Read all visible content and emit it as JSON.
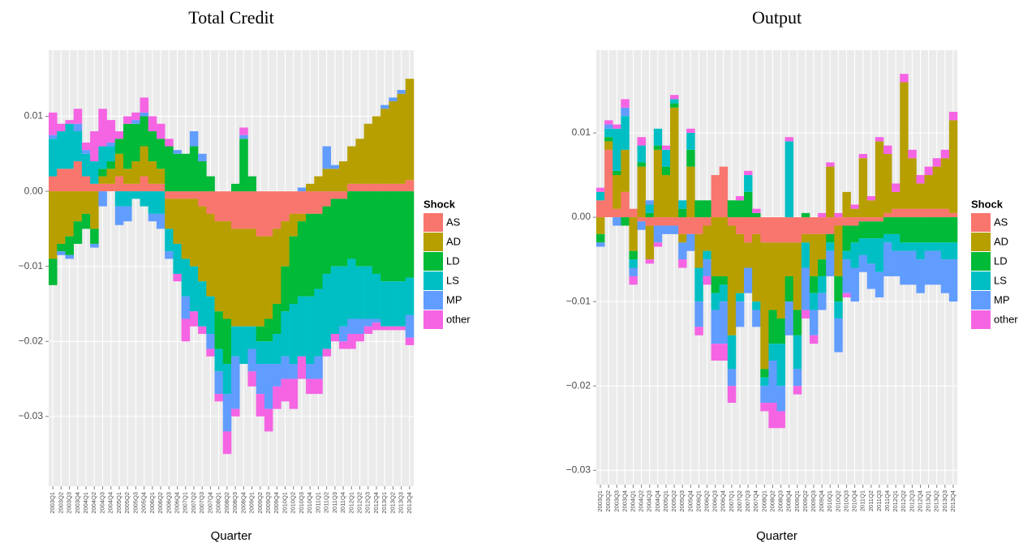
{
  "chart_data": [
    {
      "type": "bar",
      "title": "Total Credit",
      "x_label": "Quarter",
      "legend_title": "Shock",
      "stacked": true,
      "categories": [
        "2003Q1",
        "2003Q2",
        "2003Q3",
        "2003Q4",
        "2004Q1",
        "2004Q2",
        "2004Q3",
        "2004Q4",
        "2005Q1",
        "2005Q2",
        "2005Q3",
        "2005Q4",
        "2006Q1",
        "2006Q2",
        "2006Q3",
        "2006Q4",
        "2007Q1",
        "2007Q2",
        "2007Q3",
        "2007Q4",
        "2008Q1",
        "2008Q2",
        "2008Q3",
        "2008Q4",
        "2009Q1",
        "2009Q2",
        "2009Q3",
        "2009Q4",
        "2010Q1",
        "2010Q2",
        "2010Q3",
        "2010Q4",
        "2011Q1",
        "2011Q2",
        "2011Q3",
        "2011Q4",
        "2012Q1",
        "2012Q2",
        "2012Q3",
        "2012Q4",
        "2013Q1",
        "2013Q2",
        "2013Q3",
        "2013Q4"
      ],
      "ylim": [
        -0.0393,
        0.0188
      ],
      "yticks": [
        {
          "value": 0.01,
          "label": "0.01"
        },
        {
          "value": 0,
          "label": "0.00"
        },
        {
          "value": -0.01,
          "label": "−0.01"
        },
        {
          "value": -0.02,
          "label": "−0.02"
        },
        {
          "value": -0.03,
          "label": "−0.03"
        }
      ],
      "grid": true,
      "series": [
        {
          "name": "AS",
          "color": "#F8766D",
          "values": [
            0.002,
            0.003,
            0.003,
            0.004,
            0.002,
            0.001,
            0.001,
            0.001,
            0.002,
            0.001,
            0.001,
            0.002,
            0.001,
            0.001,
            -0.001,
            -0.001,
            -0.001,
            -0.001,
            -0.002,
            -0.003,
            -0.004,
            -0.004,
            -0.005,
            -0.005,
            -0.005,
            -0.006,
            -0.006,
            -0.005,
            -0.004,
            -0.003,
            -0.003,
            -0.003,
            -0.003,
            -0.002,
            -0.001,
            -0.001,
            0.001,
            0.001,
            0.001,
            0.001,
            0.001,
            0.001,
            0.001,
            0.0015
          ]
        },
        {
          "name": "AD",
          "color": "#B79F00",
          "values": [
            -0.009,
            -0.007,
            -0.006,
            -0.004,
            -0.003,
            -0.005,
            0.001,
            0.002,
            0.003,
            0.002,
            0.003,
            0.004,
            0.003,
            0.002,
            -0.004,
            -0.006,
            -0.008,
            -0.009,
            -0.01,
            -0.011,
            -0.012,
            -0.013,
            -0.013,
            -0.013,
            -0.013,
            -0.012,
            -0.011,
            -0.01,
            -0.006,
            -0.003,
            -0.001,
            0.001,
            0.002,
            0.003,
            0.003,
            0.004,
            0.005,
            0.006,
            0.008,
            0.009,
            0.01,
            0.011,
            0.012,
            0.0135
          ]
        },
        {
          "name": "LD",
          "color": "#00BA38",
          "values": [
            -0.0035,
            -0.001,
            -0.0025,
            -0.003,
            -0.002,
            -0.002,
            0.001,
            0.001,
            0.002,
            0.006,
            0.005,
            0.004,
            0.004,
            0.004,
            0.006,
            0.005,
            0.005,
            0.006,
            0.004,
            0.002,
            -0.005,
            -0.006,
            0.001,
            0.007,
            0.002,
            -0.002,
            -0.003,
            -0.004,
            -0.006,
            -0.009,
            -0.01,
            -0.011,
            -0.01,
            -0.009,
            -0.009,
            -0.009,
            -0.009,
            -0.01,
            -0.01,
            -0.011,
            -0.012,
            -0.012,
            -0.012,
            -0.0115
          ]
        },
        {
          "name": "LS",
          "color": "#00BFC4",
          "values": [
            0.005,
            0.005,
            0.006,
            0.004,
            0.003,
            0.003,
            0.003,
            0.002,
            -0.002,
            -0.002,
            -0.001,
            -0.002,
            -0.003,
            -0.003,
            -0.003,
            -0.004,
            -0.005,
            -0.006,
            -0.006,
            -0.005,
            -0.003,
            -0.004,
            -0.004,
            -0.005,
            -0.003,
            -0.003,
            -0.003,
            -0.004,
            -0.006,
            -0.008,
            -0.008,
            -0.009,
            -0.009,
            -0.01,
            -0.009,
            -0.008,
            -0.008,
            -0.007,
            -0.007,
            -0.006,
            -0.006,
            -0.006,
            -0.006,
            -0.005
          ]
        },
        {
          "name": "MP",
          "color": "#619CFF",
          "values": [
            0.0005,
            -0.0005,
            -0.0005,
            0.001,
            0.0005,
            -0.0005,
            -0.002,
            0.0005,
            -0.0025,
            -0.002,
            0.0005,
            0.0005,
            -0.001,
            -0.002,
            -0.001,
            0.0005,
            -0.003,
            0.002,
            0.001,
            -0.002,
            -0.003,
            -0.005,
            -0.007,
            0.0005,
            -0.003,
            -0.004,
            -0.006,
            -0.003,
            -0.003,
            -0.002,
            0.0005,
            -0.002,
            -0.003,
            0.003,
            0.0005,
            -0.002,
            -0.002,
            -0.002,
            -0.001,
            -0.0005,
            0.0005,
            0.0005,
            0.0005,
            -0.003
          ]
        },
        {
          "name": "other",
          "color": "#F564E3",
          "values": [
            0.003,
            0.001,
            0.0005,
            0.002,
            0.001,
            0.004,
            0.005,
            0.003,
            0.001,
            0.001,
            0.001,
            0.002,
            0.002,
            0.002,
            0.001,
            -0.001,
            -0.003,
            -0.002,
            -0.001,
            -0.001,
            -0.001,
            -0.003,
            -0.001,
            0.001,
            -0.002,
            -0.003,
            -0.003,
            -0.003,
            -0.003,
            -0.004,
            -0.003,
            -0.002,
            -0.002,
            -0.001,
            -0.001,
            -0.001,
            -0.002,
            -0.001,
            -0.001,
            -0.001,
            -0.0005,
            -0.0005,
            -0.0005,
            -0.001
          ]
        }
      ]
    },
    {
      "type": "bar",
      "title": "Output",
      "x_label": "Quarter",
      "legend_title": "Shock",
      "stacked": true,
      "categories": [
        "2003Q1",
        "2003Q2",
        "2003Q3",
        "2003Q4",
        "2004Q1",
        "2004Q2",
        "2004Q3",
        "2004Q4",
        "2005Q1",
        "2005Q2",
        "2005Q3",
        "2005Q4",
        "2006Q1",
        "2006Q2",
        "2006Q3",
        "2006Q4",
        "2007Q1",
        "2007Q2",
        "2007Q3",
        "2007Q4",
        "2008Q1",
        "2008Q2",
        "2008Q3",
        "2008Q4",
        "2009Q1",
        "2009Q2",
        "2009Q3",
        "2009Q4",
        "2010Q1",
        "2010Q2",
        "2010Q3",
        "2010Q4",
        "2011Q1",
        "2011Q2",
        "2011Q3",
        "2011Q4",
        "2012Q1",
        "2012Q2",
        "2012Q3",
        "2012Q4",
        "2013Q1",
        "2013Q2",
        "2013Q3",
        "2013Q4"
      ],
      "ylim": [
        -0.0317,
        0.0198
      ],
      "yticks": [
        {
          "value": 0.01,
          "label": "0.01"
        },
        {
          "value": 0,
          "label": "0.00"
        },
        {
          "value": -0.01,
          "label": "−0.01"
        },
        {
          "value": -0.02,
          "label": "−0.02"
        },
        {
          "value": -0.03,
          "label": "−0.03"
        }
      ],
      "grid": true,
      "series": [
        {
          "name": "AS",
          "color": "#F8766D",
          "values": [
            0.002,
            0.008,
            0.001,
            0.003,
            0.001,
            -0.0005,
            -0.001,
            -0.001,
            -0.001,
            -0.001,
            -0.002,
            -0.002,
            -0.002,
            -0.001,
            0.005,
            0.006,
            -0.001,
            -0.002,
            -0.003,
            -0.002,
            -0.003,
            -0.003,
            -0.003,
            -0.003,
            -0.003,
            -0.002,
            -0.002,
            -0.002,
            -0.002,
            -0.001,
            -0.001,
            -0.001,
            -0.0005,
            -0.0005,
            -0.0005,
            0.0005,
            0.001,
            0.001,
            0.001,
            0.001,
            0.001,
            0.001,
            0.001,
            0.0005
          ]
        },
        {
          "name": "AD",
          "color": "#B79F00",
          "values": [
            -0.002,
            0.001,
            0.004,
            0.005,
            -0.004,
            0.006,
            -0.004,
            0.008,
            0.005,
            0.013,
            -0.001,
            0.006,
            -0.004,
            -0.003,
            -0.007,
            -0.007,
            -0.013,
            -0.007,
            -0.003,
            -0.008,
            -0.015,
            -0.008,
            -0.009,
            -0.004,
            -0.008,
            -0.001,
            -0.005,
            -0.003,
            0.006,
            -0.006,
            0.003,
            0.001,
            0.007,
            0.002,
            0.009,
            0.007,
            0.002,
            0.015,
            0.006,
            0.003,
            0.004,
            0.005,
            0.006,
            0.011
          ]
        },
        {
          "name": "LD",
          "color": "#00BA38",
          "values": [
            -0.001,
            0.0005,
            0.0005,
            -0.001,
            -0.001,
            0.0005,
            0.0005,
            0.0005,
            0.001,
            0.0005,
            0.001,
            0.002,
            0.002,
            0.002,
            -0.002,
            -0.001,
            0.002,
            0.002,
            0.003,
            0.0005,
            -0.001,
            -0.004,
            -0.003,
            -0.003,
            -0.003,
            0.0005,
            -0.002,
            -0.002,
            -0.001,
            -0.003,
            -0.003,
            -0.002,
            -0.002,
            -0.002,
            -0.002,
            -0.002,
            -0.002,
            -0.003,
            -0.003,
            -0.003,
            -0.003,
            -0.003,
            -0.003,
            -0.003
          ]
        },
        {
          "name": "LS",
          "color": "#00BFC4",
          "values": [
            0.001,
            0.001,
            0.005,
            0.004,
            -0.001,
            0.002,
            0.001,
            0.002,
            0.002,
            0.0005,
            0.001,
            0.002,
            -0.004,
            -0.001,
            -0.002,
            -0.002,
            -0.004,
            -0.001,
            0.002,
            -0.001,
            -0.001,
            -0.002,
            -0.005,
            0.009,
            -0.004,
            -0.003,
            -0.002,
            -0.002,
            -0.001,
            -0.002,
            -0.001,
            -0.003,
            -0.002,
            -0.003,
            -0.004,
            -0.001,
            -0.002,
            -0.001,
            -0.001,
            -0.002,
            -0.001,
            -0.001,
            -0.002,
            -0.002
          ]
        },
        {
          "name": "MP",
          "color": "#619CFF",
          "values": [
            -0.0005,
            0.0005,
            -0.001,
            0.001,
            -0.001,
            -0.001,
            0.0005,
            -0.002,
            -0.001,
            -0.001,
            -0.002,
            -0.002,
            -0.003,
            -0.002,
            -0.004,
            -0.005,
            -0.002,
            -0.003,
            -0.003,
            -0.002,
            -0.002,
            -0.005,
            -0.003,
            -0.004,
            -0.002,
            -0.005,
            -0.003,
            -0.002,
            -0.003,
            -0.004,
            -0.004,
            -0.004,
            -0.002,
            -0.003,
            -0.003,
            -0.004,
            -0.003,
            -0.004,
            -0.004,
            -0.004,
            -0.004,
            -0.004,
            -0.004,
            -0.005
          ]
        },
        {
          "name": "other",
          "color": "#F564E3",
          "values": [
            0.0005,
            0.0005,
            0.0005,
            0.001,
            -0.001,
            0.001,
            -0.0005,
            -0.0005,
            0.0005,
            0.0005,
            -0.001,
            0.0005,
            -0.001,
            -0.001,
            -0.002,
            -0.002,
            -0.002,
            0.0005,
            0.0005,
            0.0005,
            -0.001,
            -0.003,
            -0.002,
            0.0005,
            -0.001,
            -0.001,
            -0.001,
            0.0005,
            0.0005,
            0.0005,
            -0.0005,
            0.0005,
            0.0005,
            0.0005,
            0.0005,
            0.001,
            0.001,
            0.001,
            0.001,
            0.001,
            0.001,
            0.001,
            0.001,
            0.001
          ]
        }
      ]
    }
  ]
}
